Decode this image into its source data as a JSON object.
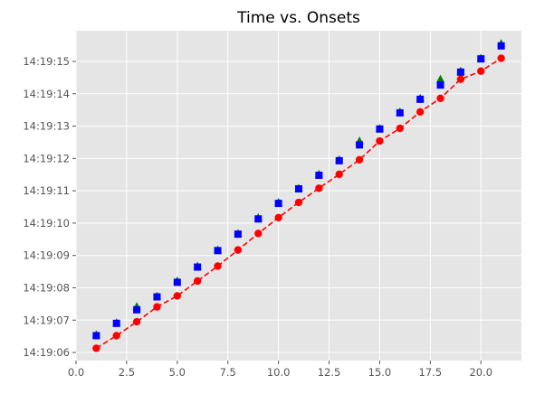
{
  "chart_data": {
    "type": "scatter",
    "title": "Time vs. Onsets",
    "xlabel": "",
    "ylabel": "",
    "xlim": [
      0,
      22
    ],
    "ylim": [
      "14:19:05.75",
      "14:19:15.95"
    ],
    "grid": true,
    "x_ticks": [
      "0.0",
      "2.5",
      "5.0",
      "7.5",
      "10.0",
      "12.5",
      "15.0",
      "17.5",
      "20.0"
    ],
    "y_ticks": [
      "14:19:06",
      "14:19:07",
      "14:19:08",
      "14:19:09",
      "14:19:10",
      "14:19:11",
      "14:19:12",
      "14:19:13",
      "14:19:14",
      "14:19:15"
    ],
    "colors": {
      "background": "#e5e5e5",
      "grid": "#ffffff",
      "red": "#ff0000",
      "green": "#008000",
      "blue": "#0000ff"
    },
    "series": [
      {
        "color": "red",
        "marker": "circle",
        "linestyle": "dashed",
        "x": [
          1,
          2,
          3,
          4,
          5,
          6,
          7,
          8,
          9,
          10,
          11,
          12,
          13,
          14,
          15,
          16,
          17,
          18,
          19,
          20,
          21
        ],
        "y": [
          "14:19:06.13",
          "14:19:06.52",
          "14:19:06.95",
          "14:19:07.41",
          "14:19:07.75",
          "14:19:08.21",
          "14:19:08.67",
          "14:19:09.17",
          "14:19:09.68",
          "14:19:10.17",
          "14:19:10.64",
          "14:19:11.08",
          "14:19:11.51",
          "14:19:11.96",
          "14:19:12.54",
          "14:19:12.93",
          "14:19:13.44",
          "14:19:13.86",
          "14:19:14.45",
          "14:19:14.70",
          "14:19:15.10"
        ]
      },
      {
        "color": "green",
        "marker": "triangle",
        "linestyle": "none",
        "x": [
          1,
          2,
          3,
          4,
          5,
          6,
          7,
          8,
          9,
          10,
          11,
          12,
          13,
          14,
          15,
          16,
          17,
          18,
          19,
          20,
          21
        ],
        "y": [
          "14:19:06.55",
          "14:19:06.92",
          "14:19:07.42",
          "14:19:07.74",
          "14:19:08.21",
          "14:19:08.67",
          "14:19:09.17",
          "14:19:09.68",
          "14:19:10.17",
          "14:19:10.64",
          "14:19:11.08",
          "14:19:11.51",
          "14:19:11.96",
          "14:19:12.54",
          "14:19:12.93",
          "14:19:13.44",
          "14:19:13.86",
          "14:19:14.45",
          "14:19:14.70",
          "14:19:15.10",
          "14:19:15.55"
        ]
      },
      {
        "color": "blue",
        "marker": "square",
        "linestyle": "none",
        "x": [
          1,
          2,
          3,
          4,
          5,
          6,
          7,
          8,
          9,
          10,
          11,
          12,
          13,
          14,
          15,
          16,
          17,
          18,
          19,
          20,
          21
        ],
        "y": [
          "14:19:06.52",
          "14:19:06.90",
          "14:19:07.32",
          "14:19:07.72",
          "14:19:08.17",
          "14:19:08.64",
          "14:19:09.15",
          "14:19:09.66",
          "14:19:10.13",
          "14:19:10.61",
          "14:19:11.06",
          "14:19:11.48",
          "14:19:11.93",
          "14:19:12.42",
          "14:19:12.91",
          "14:19:13.41",
          "14:19:13.83",
          "14:19:14.27",
          "14:19:14.67",
          "14:19:15.08",
          "14:19:15.48"
        ]
      }
    ]
  }
}
